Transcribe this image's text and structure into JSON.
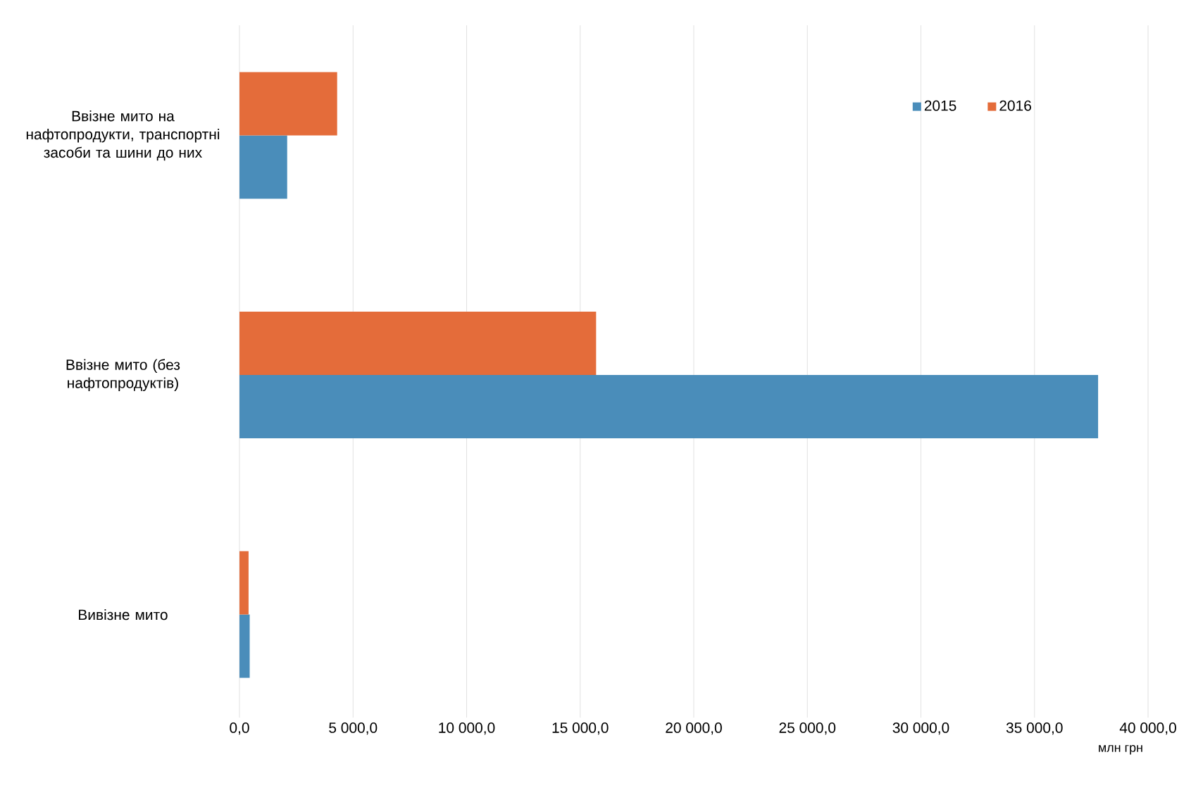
{
  "chart_data": {
    "type": "bar",
    "orientation": "horizontal",
    "xlabel": "млн грн",
    "categories": [
      "Ввізне мито на нафтопродукти, транспортні засоби та шини до них",
      "Ввізне мито (без нафтопродуктів)",
      "Вивізне мито"
    ],
    "series": [
      {
        "name": "2015",
        "color": "#4a8dba",
        "values": [
          2100,
          37800,
          450
        ]
      },
      {
        "name": "2016",
        "color": "#e46c3a",
        "values": [
          4300,
          15700,
          400
        ]
      }
    ],
    "xlim": [
      0,
      40000
    ],
    "xticks": [
      {
        "value": 0,
        "label": "0,0"
      },
      {
        "value": 5000,
        "label": "5 000,0"
      },
      {
        "value": 10000,
        "label": "10 000,0"
      },
      {
        "value": 15000,
        "label": "15 000,0"
      },
      {
        "value": 20000,
        "label": "20 000,0"
      },
      {
        "value": 25000,
        "label": "25 000,0"
      },
      {
        "value": 30000,
        "label": "30 000,0"
      },
      {
        "value": 35000,
        "label": "35 000,0"
      },
      {
        "value": 40000,
        "label": "40 000,0"
      }
    ],
    "grid": "x",
    "legend": "top right"
  }
}
